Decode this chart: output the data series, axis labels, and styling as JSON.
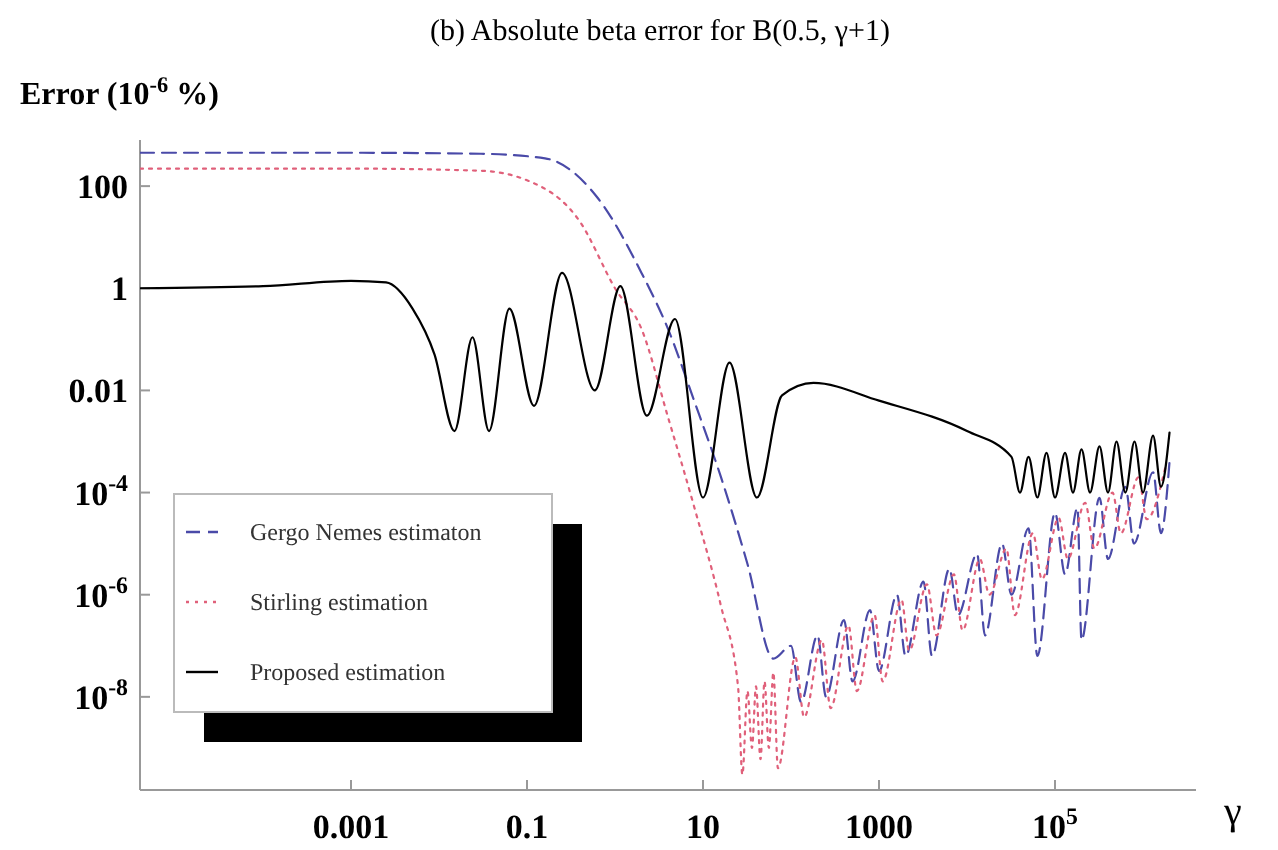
{
  "chart_data": {
    "type": "line",
    "title": "(b) Absolute beta error for B(0.5, γ+1)",
    "ylabel": "Error (10$^{-6}$ %)",
    "xlabel": "γ",
    "log": "xy",
    "grid": false,
    "legend": "bottom left",
    "xlim": [
      4e-06,
      4000000.0
    ],
    "ylim": [
      1.5e-10,
      800
    ],
    "xticks": [
      0.001,
      0.1,
      10,
      1000,
      {
        "value": 100000,
        "label": "10$^{5}$"
      }
    ],
    "yticks": [
      {
        "value": 1e-08,
        "label": "10$^{-8}$"
      },
      {
        "value": 1e-06,
        "label": "10$^{-6}$"
      },
      {
        "value": 0.0001,
        "label": "10$^{-4}$"
      },
      0.01,
      1,
      100
    ],
    "series": [
      {
        "name": "Gergo Nemes estimaton",
        "color": "#4a4aa8",
        "line_style": "dashed",
        "x": [
          4e-06,
          0.001,
          0.03,
          0.16,
          0.63,
          2,
          4,
          8,
          16,
          32,
          63,
          100,
          130,
          200,
          250,
          400,
          500,
          790,
          1000,
          1600,
          2000,
          3200,
          4000,
          6300,
          7900,
          13000,
          16000,
          25000,
          32000,
          50000,
          63000,
          100000,
          130000,
          180000,
          200000,
          320000,
          400000,
          630000,
          790000,
          1300000,
          1600000,
          2000000
        ],
        "values": [
          450,
          450,
          430,
          350,
          60,
          2,
          0.16,
          0.006,
          0.0002,
          4e-06,
          5.6e-08,
          1e-07,
          7.9e-09,
          1.6e-07,
          1e-08,
          3.2e-07,
          2e-08,
          5e-07,
          3.2e-08,
          1e-06,
          6.3e-08,
          1.8e-06,
          6.3e-08,
          3.2e-06,
          4e-07,
          6.3e-06,
          1.6e-07,
          1e-05,
          1e-06,
          2e-05,
          6.3e-08,
          4e-05,
          2.5e-06,
          5e-05,
          1.3e-07,
          7.9e-05,
          5e-06,
          0.00013,
          1e-05,
          0.00025,
          1.6e-05,
          0.0004
        ]
      },
      {
        "name": "Stirling estimation",
        "color": "#e0607a",
        "line_style": "dotted",
        "x": [
          4e-06,
          0.001,
          0.03,
          0.1,
          0.4,
          1,
          2,
          4,
          8,
          16,
          25,
          28,
          32,
          36,
          40,
          45,
          50,
          56,
          63,
          71,
          112,
          141,
          224,
          282,
          450,
          560,
          890,
          1100,
          1800,
          2200,
          3500,
          4500,
          7100,
          8900,
          14000,
          18000,
          28000,
          35000,
          56000,
          71000,
          110000,
          140000,
          220000,
          280000,
          450000,
          560000,
          890000,
          1100000,
          1800000
        ],
        "values": [
          220,
          220,
          200,
          130,
          20,
          1,
          0.16,
          0.003,
          5e-05,
          6e-07,
          1.6e-08,
          3e-10,
          1.3e-08,
          1e-09,
          1.6e-08,
          6e-10,
          2e-08,
          1e-09,
          3e-08,
          4e-10,
          6e-08,
          4e-09,
          1.3e-07,
          6e-09,
          2.5e-07,
          1.3e-08,
          4e-07,
          2e-08,
          8e-07,
          8e-08,
          1.6e-06,
          1.6e-07,
          2.5e-06,
          2e-07,
          5e-06,
          1e-06,
          8e-06,
          4e-07,
          1.6e-05,
          2e-06,
          3.2e-05,
          5e-06,
          6.3e-05,
          8e-06,
          0.0001,
          1.6e-05,
          0.0002,
          3e-05,
          0.00032
        ]
      },
      {
        "name": "Proposed estimation",
        "color": "#000000",
        "line_style": "solid",
        "x": [
          4e-06,
          0.0001,
          0.001,
          0.0025,
          0.005,
          0.0089,
          0.015,
          0.024,
          0.037,
          0.063,
          0.12,
          0.25,
          0.59,
          1.15,
          2.3,
          4.8,
          10,
          20,
          41,
          79,
          180,
          1000,
          10000,
          32000,
          40000,
          50000,
          63000,
          80000,
          100000,
          130000,
          160000,
          200000,
          250000,
          320000,
          400000,
          500000,
          630000,
          800000,
          1000000,
          1300000,
          1600000,
          2000000
        ],
        "values": [
          1,
          1.1,
          1.4,
          1.3,
          0.4,
          0.05,
          0.0016,
          0.11,
          0.0016,
          0.4,
          0.005,
          2,
          0.01,
          1.1,
          0.0032,
          0.25,
          8e-05,
          0.035,
          8e-05,
          0.008,
          0.014,
          0.0063,
          0.0016,
          0.0005,
          0.0001,
          0.0005,
          8e-05,
          0.0006,
          8e-05,
          0.0006,
          0.0001,
          0.0007,
          0.0001,
          0.0008,
          0.0001,
          0.001,
          0.0001,
          0.001,
          0.0001,
          0.0013,
          0.00013,
          0.0015
        ]
      }
    ]
  }
}
